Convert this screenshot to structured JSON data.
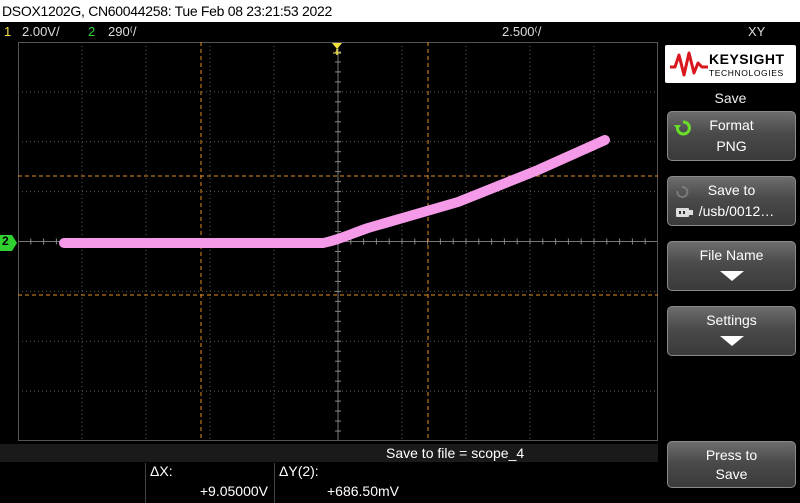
{
  "header": {
    "title": "DSOX1202G, CN60044258: Tue Feb 08 23:21:53 2022"
  },
  "status": {
    "ch1_num": "1",
    "ch1_scale": "2.00V/",
    "ch2_num": "2",
    "ch2_scale": "290&#8317;/",
    "timebase": "2.500&#8317;/",
    "mode": "XY"
  },
  "markers": {
    "trigger": "T",
    "ch2_ground": "2"
  },
  "colors": {
    "trace": "#f49ae8",
    "cursor": "#e0902a",
    "ch1": "#f0e040",
    "ch2": "#30d030",
    "grid": "#5a5a5a"
  },
  "brand": {
    "name": "KEYSIGHT",
    "sub": "TECHNOLOGIES"
  },
  "panel": {
    "title": "Save",
    "format_label": "Format",
    "format_value": "PNG",
    "saveto_label": "Save to",
    "saveto_value": "/usb/0012…",
    "filename_label": "File Name",
    "settings_label": "Settings",
    "press_label": "Press to",
    "save_label": "Save"
  },
  "bottom": {
    "save_message": "Save to file =  scope_4",
    "dx_label": "ΔX:",
    "dx_value": "+9.05000V",
    "dy_label": "ΔY(2):",
    "dy_value": "+686.50mV"
  }
}
